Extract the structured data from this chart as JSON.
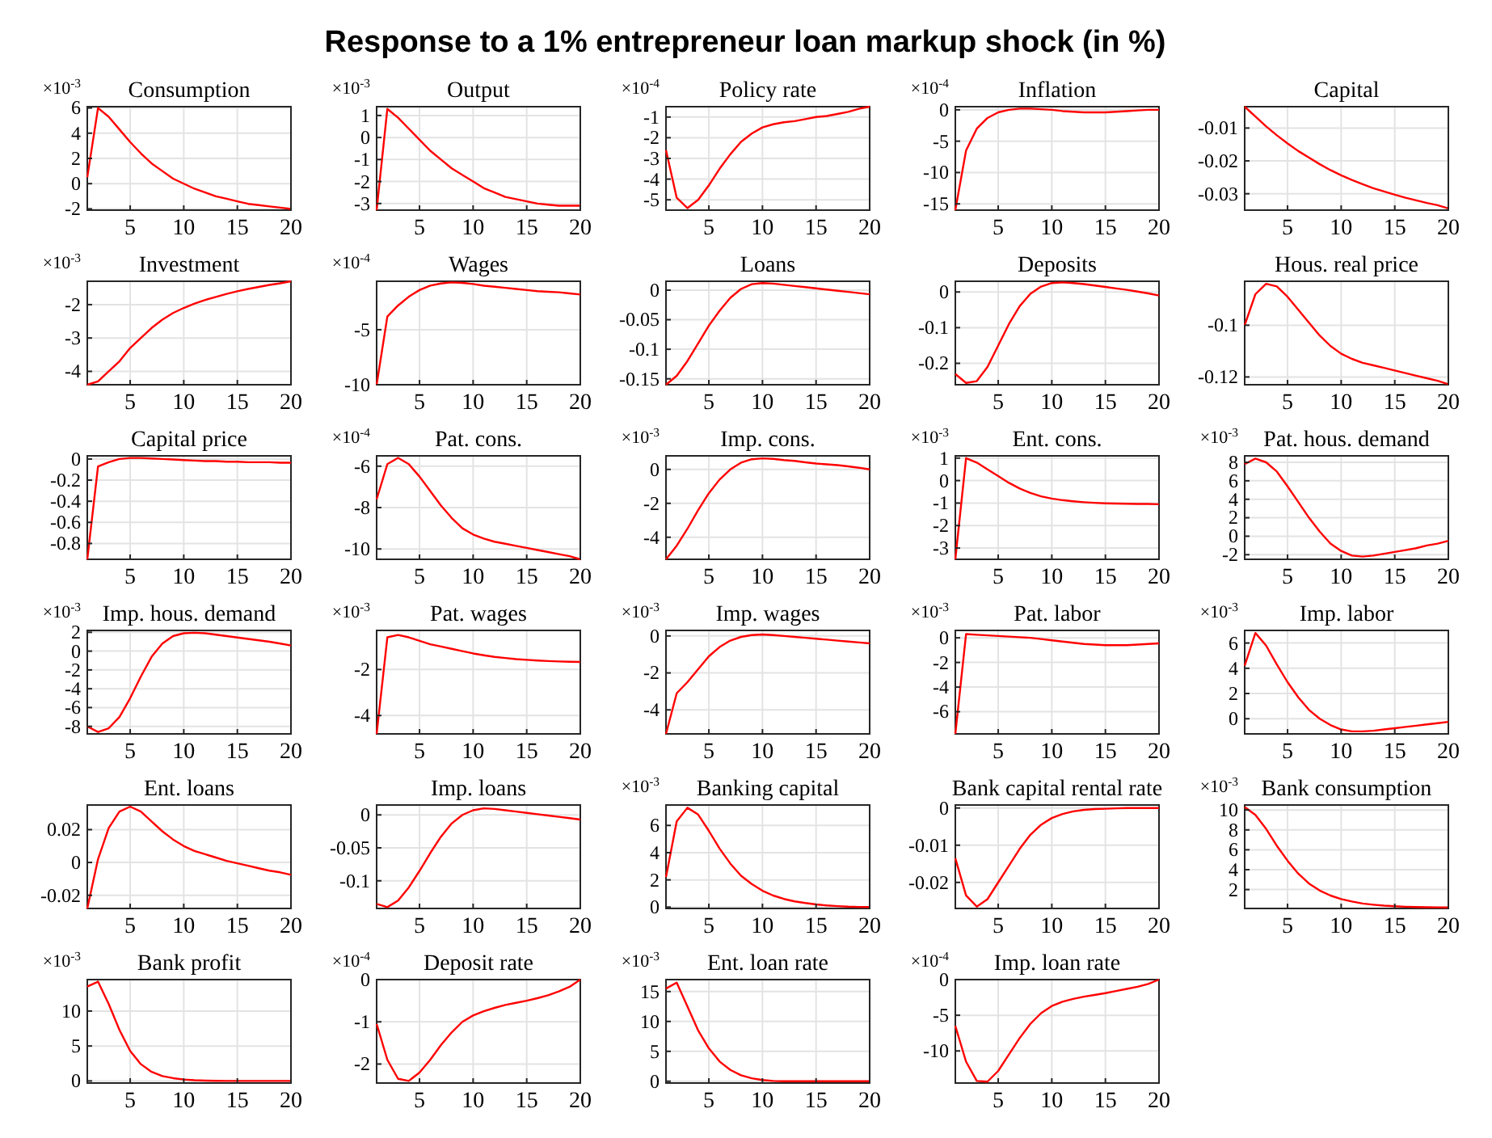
{
  "chart_data": [
    {
      "type": "line",
      "title": "Consumption",
      "annotations": [
        "Response to a 1% entrepreneur loan markup shock (in %)",
        "×10$^{-3}$"
      ],
      "x": [
        1,
        2,
        3,
        4,
        5,
        6,
        7,
        8,
        9,
        10,
        11,
        12,
        13,
        14,
        15,
        16,
        17,
        18,
        19,
        20
      ],
      "xlim": [
        1,
        20
      ],
      "xticks": [
        5,
        10,
        15,
        20
      ],
      "ylim": [
        -2.1,
        6.1
      ],
      "yticks": [
        -2,
        0,
        2,
        4,
        6
      ],
      "grid": true,
      "series": [
        {
          "color": "#ff0000",
          "values": [
            0.5,
            6,
            5.3,
            4.3,
            3.3,
            2.4,
            1.6,
            1,
            0.4,
            0,
            -0.4,
            -0.7,
            -1,
            -1.2,
            -1.4,
            -1.6,
            -1.7,
            -1.8,
            -1.9,
            -2
          ]
        }
      ]
    },
    {
      "type": "line",
      "title": "Output",
      "annotations": [
        "×10$^{-3}$"
      ],
      "x": [
        1,
        2,
        3,
        4,
        5,
        6,
        7,
        8,
        9,
        10,
        11,
        12,
        13,
        14,
        15,
        16,
        17,
        18,
        19,
        20
      ],
      "xlim": [
        1,
        20
      ],
      "xticks": [
        5,
        10,
        15,
        20
      ],
      "ylim": [
        -3.3,
        1.4
      ],
      "yticks": [
        -3,
        -2,
        -1,
        0,
        1
      ],
      "grid": true,
      "series": [
        {
          "color": "#ff0000",
          "values": [
            -3.3,
            1.3,
            0.9,
            0.4,
            -0.1,
            -0.6,
            -1,
            -1.4,
            -1.7,
            -2,
            -2.3,
            -2.5,
            -2.7,
            -2.8,
            -2.9,
            -3,
            -3.05,
            -3.1,
            -3.1,
            -3.1
          ]
        }
      ]
    },
    {
      "type": "line",
      "title": "Policy rate",
      "annotations": [
        "×10$^{-4}$"
      ],
      "x": [
        1,
        2,
        3,
        4,
        5,
        6,
        7,
        8,
        9,
        10,
        11,
        12,
        13,
        14,
        15,
        16,
        17,
        18,
        19,
        20
      ],
      "xlim": [
        1,
        20
      ],
      "xticks": [
        5,
        10,
        15,
        20
      ],
      "ylim": [
        -5.5,
        -0.5
      ],
      "yticks": [
        -5,
        -4,
        -3,
        -2,
        -1
      ],
      "grid": true,
      "series": [
        {
          "color": "#ff0000",
          "values": [
            -2.6,
            -4.9,
            -5.4,
            -5,
            -4.3,
            -3.5,
            -2.8,
            -2.2,
            -1.8,
            -1.5,
            -1.35,
            -1.25,
            -1.2,
            -1.1,
            -1,
            -0.95,
            -0.85,
            -0.75,
            -0.6,
            -0.5
          ]
        }
      ]
    },
    {
      "type": "line",
      "title": "Inflation",
      "annotations": [
        "×10$^{-4}$"
      ],
      "x": [
        1,
        2,
        3,
        4,
        5,
        6,
        7,
        8,
        9,
        10,
        11,
        12,
        13,
        14,
        15,
        16,
        17,
        18,
        19,
        20
      ],
      "xlim": [
        1,
        20
      ],
      "xticks": [
        5,
        10,
        15,
        20
      ],
      "ylim": [
        -16,
        0.5
      ],
      "yticks": [
        -15,
        -10,
        -5,
        0
      ],
      "grid": true,
      "series": [
        {
          "color": "#ff0000",
          "values": [
            -16,
            -6.5,
            -3,
            -1.3,
            -0.4,
            0,
            0.2,
            0.2,
            0.1,
            0,
            -0.2,
            -0.3,
            -0.4,
            -0.4,
            -0.4,
            -0.3,
            -0.2,
            -0.1,
            0,
            0
          ]
        }
      ]
    },
    {
      "type": "line",
      "title": "Capital",
      "x": [
        1,
        2,
        3,
        4,
        5,
        6,
        7,
        8,
        9,
        10,
        11,
        12,
        13,
        14,
        15,
        16,
        17,
        18,
        19,
        20
      ],
      "xlim": [
        1,
        20
      ],
      "xticks": [
        5,
        10,
        15,
        20
      ],
      "ylim": [
        -0.035,
        -0.0035
      ],
      "yticks": [
        -0.03,
        -0.02,
        -0.01
      ],
      "grid": true,
      "series": [
        {
          "color": "#ff0000",
          "values": [
            -0.0035,
            -0.0065,
            -0.0095,
            -0.0122,
            -0.0147,
            -0.017,
            -0.019,
            -0.021,
            -0.0228,
            -0.0244,
            -0.0258,
            -0.0271,
            -0.0283,
            -0.0293,
            -0.0303,
            -0.0312,
            -0.032,
            -0.0328,
            -0.0335,
            -0.0345
          ]
        }
      ]
    },
    {
      "type": "line",
      "title": "Investment",
      "annotations": [
        "×10$^{-3}$"
      ],
      "x": [
        1,
        2,
        3,
        4,
        5,
        6,
        7,
        8,
        9,
        10,
        11,
        12,
        13,
        14,
        15,
        16,
        17,
        18,
        19,
        20
      ],
      "xlim": [
        1,
        20
      ],
      "xticks": [
        5,
        10,
        15,
        20
      ],
      "ylim": [
        -4.4,
        -1.3
      ],
      "yticks": [
        -4,
        -3,
        -2
      ],
      "grid": true,
      "series": [
        {
          "color": "#ff0000",
          "values": [
            -4.4,
            -4.3,
            -4,
            -3.7,
            -3.3,
            -3,
            -2.7,
            -2.45,
            -2.25,
            -2.1,
            -1.97,
            -1.86,
            -1.77,
            -1.68,
            -1.6,
            -1.53,
            -1.47,
            -1.41,
            -1.36,
            -1.3
          ]
        }
      ]
    },
    {
      "type": "line",
      "title": "Wages",
      "annotations": [
        "×10$^{-4}$"
      ],
      "x": [
        1,
        2,
        3,
        4,
        5,
        6,
        7,
        8,
        9,
        10,
        11,
        12,
        13,
        14,
        15,
        16,
        17,
        18,
        19,
        20
      ],
      "xlim": [
        1,
        20
      ],
      "xticks": [
        5,
        10,
        15,
        20
      ],
      "ylim": [
        -10,
        -0.6
      ],
      "yticks": [
        -10,
        -5
      ],
      "grid": true,
      "series": [
        {
          "color": "#ff0000",
          "values": [
            -10,
            -3.8,
            -2.8,
            -2,
            -1.4,
            -1,
            -0.8,
            -0.7,
            -0.75,
            -0.85,
            -1,
            -1.1,
            -1.2,
            -1.3,
            -1.4,
            -1.5,
            -1.55,
            -1.6,
            -1.7,
            -1.8
          ]
        }
      ]
    },
    {
      "type": "line",
      "title": "Loans",
      "x": [
        1,
        2,
        3,
        4,
        5,
        6,
        7,
        8,
        9,
        10,
        11,
        12,
        13,
        14,
        15,
        16,
        17,
        18,
        19,
        20
      ],
      "xlim": [
        1,
        20
      ],
      "xticks": [
        5,
        10,
        15,
        20
      ],
      "ylim": [
        -0.16,
        0.015
      ],
      "yticks": [
        -0.15,
        -0.1,
        -0.05,
        0
      ],
      "grid": true,
      "series": [
        {
          "color": "#ff0000",
          "values": [
            -0.16,
            -0.145,
            -0.12,
            -0.09,
            -0.06,
            -0.035,
            -0.013,
            0.002,
            0.01,
            0.012,
            0.011,
            0.009,
            0.007,
            0.005,
            0.003,
            0.001,
            -0.001,
            -0.003,
            -0.005,
            -0.007
          ]
        }
      ]
    },
    {
      "type": "line",
      "title": "Deposits",
      "x": [
        1,
        2,
        3,
        4,
        5,
        6,
        7,
        8,
        9,
        10,
        11,
        12,
        13,
        14,
        15,
        16,
        17,
        18,
        19,
        20
      ],
      "xlim": [
        1,
        20
      ],
      "xticks": [
        5,
        10,
        15,
        20
      ],
      "ylim": [
        -0.26,
        0.03
      ],
      "yticks": [
        -0.2,
        -0.1,
        0
      ],
      "grid": true,
      "series": [
        {
          "color": "#ff0000",
          "values": [
            -0.23,
            -0.255,
            -0.25,
            -0.21,
            -0.15,
            -0.09,
            -0.04,
            -0.005,
            0.015,
            0.025,
            0.027,
            0.025,
            0.022,
            0.018,
            0.014,
            0.01,
            0.006,
            0.001,
            -0.004,
            -0.01
          ]
        }
      ]
    },
    {
      "type": "line",
      "title": "Hous. real price",
      "x": [
        1,
        2,
        3,
        4,
        5,
        6,
        7,
        8,
        9,
        10,
        11,
        12,
        13,
        14,
        15,
        16,
        17,
        18,
        19,
        20
      ],
      "xlim": [
        1,
        20
      ],
      "xticks": [
        5,
        10,
        15,
        20
      ],
      "ylim": [
        -0.123,
        -0.083
      ],
      "yticks": [
        -0.12,
        -0.1
      ],
      "grid": true,
      "series": [
        {
          "color": "#ff0000",
          "values": [
            -0.1,
            -0.088,
            -0.084,
            -0.085,
            -0.089,
            -0.094,
            -0.099,
            -0.104,
            -0.108,
            -0.111,
            -0.113,
            -0.1145,
            -0.1155,
            -0.1165,
            -0.1175,
            -0.1185,
            -0.1195,
            -0.1205,
            -0.1215,
            -0.1228
          ]
        }
      ]
    },
    {
      "type": "line",
      "title": "Capital price",
      "x": [
        1,
        2,
        3,
        4,
        5,
        6,
        7,
        8,
        9,
        10,
        11,
        12,
        13,
        14,
        15,
        16,
        17,
        18,
        19,
        20
      ],
      "xlim": [
        1,
        20
      ],
      "xticks": [
        5,
        10,
        15,
        20
      ],
      "ylim": [
        -0.95,
        0.03
      ],
      "yticks": [
        -0.8,
        -0.6,
        -0.4,
        -0.2,
        0
      ],
      "grid": true,
      "series": [
        {
          "color": "#ff0000",
          "values": [
            -0.95,
            -0.07,
            -0.03,
            0,
            0.01,
            0.01,
            0.005,
            0,
            -0.005,
            -0.01,
            -0.015,
            -0.02,
            -0.02,
            -0.025,
            -0.025,
            -0.03,
            -0.03,
            -0.03,
            -0.035,
            -0.035
          ]
        }
      ]
    },
    {
      "type": "line",
      "title": "Pat. cons.",
      "annotations": [
        "×10$^{-4}$"
      ],
      "x": [
        1,
        2,
        3,
        4,
        5,
        6,
        7,
        8,
        9,
        10,
        11,
        12,
        13,
        14,
        15,
        16,
        17,
        18,
        19,
        20
      ],
      "xlim": [
        1,
        20
      ],
      "xticks": [
        5,
        10,
        15,
        20
      ],
      "ylim": [
        -10.5,
        -5.5
      ],
      "yticks": [
        -10,
        -8,
        -6
      ],
      "grid": true,
      "series": [
        {
          "color": "#ff0000",
          "values": [
            -7.6,
            -5.9,
            -5.6,
            -5.9,
            -6.5,
            -7.2,
            -7.9,
            -8.5,
            -9,
            -9.3,
            -9.5,
            -9.65,
            -9.75,
            -9.85,
            -9.95,
            -10.05,
            -10.15,
            -10.25,
            -10.35,
            -10.5
          ]
        }
      ]
    },
    {
      "type": "line",
      "title": "Imp. cons.",
      "annotations": [
        "×10$^{-3}$"
      ],
      "x": [
        1,
        2,
        3,
        4,
        5,
        6,
        7,
        8,
        9,
        10,
        11,
        12,
        13,
        14,
        15,
        16,
        17,
        18,
        19,
        20
      ],
      "xlim": [
        1,
        20
      ],
      "xticks": [
        5,
        10,
        15,
        20
      ],
      "ylim": [
        -5.3,
        0.8
      ],
      "yticks": [
        -4,
        -2,
        0
      ],
      "grid": true,
      "series": [
        {
          "color": "#ff0000",
          "values": [
            -5.3,
            -4.5,
            -3.5,
            -2.4,
            -1.4,
            -0.6,
            0,
            0.4,
            0.6,
            0.65,
            0.62,
            0.55,
            0.5,
            0.42,
            0.35,
            0.3,
            0.25,
            0.18,
            0.1,
            0
          ]
        }
      ]
    },
    {
      "type": "line",
      "title": "Ent. cons.",
      "annotations": [
        "×10$^{-3}$"
      ],
      "x": [
        1,
        2,
        3,
        4,
        5,
        6,
        7,
        8,
        9,
        10,
        11,
        12,
        13,
        14,
        15,
        16,
        17,
        18,
        19,
        20
      ],
      "xlim": [
        1,
        20
      ],
      "xticks": [
        5,
        10,
        15,
        20
      ],
      "ylim": [
        -3.5,
        1.1
      ],
      "yticks": [
        -3,
        -2,
        -1,
        0,
        1
      ],
      "grid": true,
      "series": [
        {
          "color": "#ff0000",
          "values": [
            -3.5,
            1,
            0.8,
            0.5,
            0.2,
            -0.1,
            -0.35,
            -0.55,
            -0.7,
            -0.8,
            -0.87,
            -0.92,
            -0.96,
            -0.99,
            -1.01,
            -1.02,
            -1.03,
            -1.04,
            -1.04,
            -1.05
          ]
        }
      ]
    },
    {
      "type": "line",
      "title": "Pat. hous. demand",
      "annotations": [
        "×10$^{-3}$"
      ],
      "x": [
        1,
        2,
        3,
        4,
        5,
        6,
        7,
        8,
        9,
        10,
        11,
        12,
        13,
        14,
        15,
        16,
        17,
        18,
        19,
        20
      ],
      "xlim": [
        1,
        20
      ],
      "xticks": [
        5,
        10,
        15,
        20
      ],
      "ylim": [
        -2.5,
        8.7
      ],
      "yticks": [
        -2,
        0,
        2,
        4,
        6,
        8
      ],
      "grid": true,
      "series": [
        {
          "color": "#ff0000",
          "values": [
            7.8,
            8.4,
            8,
            7,
            5.4,
            3.7,
            2,
            0.5,
            -0.8,
            -1.6,
            -2.1,
            -2.2,
            -2.1,
            -1.9,
            -1.7,
            -1.5,
            -1.3,
            -1,
            -0.8,
            -0.5
          ]
        }
      ]
    },
    {
      "type": "line",
      "title": "Imp. hous. demand",
      "annotations": [
        "×10$^{-3}$"
      ],
      "x": [
        1,
        2,
        3,
        4,
        5,
        6,
        7,
        8,
        9,
        10,
        11,
        12,
        13,
        14,
        15,
        16,
        17,
        18,
        19,
        20
      ],
      "xlim": [
        1,
        20
      ],
      "xticks": [
        5,
        10,
        15,
        20
      ],
      "ylim": [
        -8.8,
        2.2
      ],
      "yticks": [
        -8,
        -6,
        -4,
        -2,
        0,
        2
      ],
      "grid": true,
      "series": [
        {
          "color": "#ff0000",
          "values": [
            -8,
            -8.6,
            -8.2,
            -7,
            -5,
            -2.7,
            -0.6,
            0.8,
            1.6,
            1.9,
            1.95,
            1.9,
            1.75,
            1.6,
            1.45,
            1.3,
            1.15,
            1,
            0.8,
            0.6
          ]
        }
      ]
    },
    {
      "type": "line",
      "title": "Pat. wages",
      "annotations": [
        "×10$^{-3}$"
      ],
      "x": [
        1,
        2,
        3,
        4,
        5,
        6,
        7,
        8,
        9,
        10,
        11,
        12,
        13,
        14,
        15,
        16,
        17,
        18,
        19,
        20
      ],
      "xlim": [
        1,
        20
      ],
      "xticks": [
        5,
        10,
        15,
        20
      ],
      "ylim": [
        -4.8,
        -0.3
      ],
      "yticks": [
        -4,
        -2
      ],
      "grid": true,
      "series": [
        {
          "color": "#ff0000",
          "values": [
            -4.8,
            -0.6,
            -0.5,
            -0.6,
            -0.75,
            -0.9,
            -1,
            -1.1,
            -1.2,
            -1.3,
            -1.38,
            -1.45,
            -1.5,
            -1.55,
            -1.58,
            -1.61,
            -1.63,
            -1.65,
            -1.66,
            -1.67
          ]
        }
      ]
    },
    {
      "type": "line",
      "title": "Imp. wages",
      "annotations": [
        "×10$^{-3}$"
      ],
      "x": [
        1,
        2,
        3,
        4,
        5,
        6,
        7,
        8,
        9,
        10,
        11,
        12,
        13,
        14,
        15,
        16,
        17,
        18,
        19,
        20
      ],
      "xlim": [
        1,
        20
      ],
      "xticks": [
        5,
        10,
        15,
        20
      ],
      "ylim": [
        -5.3,
        0.3
      ],
      "yticks": [
        -4,
        -2,
        0
      ],
      "grid": true,
      "series": [
        {
          "color": "#ff0000",
          "values": [
            -5.3,
            -3.1,
            -2.5,
            -1.8,
            -1.1,
            -0.6,
            -0.25,
            -0.05,
            0.05,
            0.08,
            0.05,
            0,
            -0.05,
            -0.1,
            -0.15,
            -0.2,
            -0.25,
            -0.3,
            -0.35,
            -0.4
          ]
        }
      ]
    },
    {
      "type": "line",
      "title": "Pat. labor",
      "annotations": [
        "×10$^{-3}$"
      ],
      "x": [
        1,
        2,
        3,
        4,
        5,
        6,
        7,
        8,
        9,
        10,
        11,
        12,
        13,
        14,
        15,
        16,
        17,
        18,
        19,
        20
      ],
      "xlim": [
        1,
        20
      ],
      "xticks": [
        5,
        10,
        15,
        20
      ],
      "ylim": [
        -7.8,
        0.6
      ],
      "yticks": [
        -6,
        -4,
        -2,
        0
      ],
      "grid": true,
      "series": [
        {
          "color": "#ff0000",
          "values": [
            -7.8,
            0.3,
            0.25,
            0.2,
            0.15,
            0.1,
            0.05,
            0,
            -0.1,
            -0.2,
            -0.3,
            -0.4,
            -0.5,
            -0.55,
            -0.6,
            -0.6,
            -0.6,
            -0.55,
            -0.5,
            -0.45
          ]
        }
      ]
    },
    {
      "type": "line",
      "title": "Imp. labor",
      "annotations": [
        "×10$^{-3}$"
      ],
      "x": [
        1,
        2,
        3,
        4,
        5,
        6,
        7,
        8,
        9,
        10,
        11,
        12,
        13,
        14,
        15,
        16,
        17,
        18,
        19,
        20
      ],
      "xlim": [
        1,
        20
      ],
      "xticks": [
        5,
        10,
        15,
        20
      ],
      "ylim": [
        -1.2,
        7
      ],
      "yticks": [
        0,
        2,
        4,
        6
      ],
      "grid": true,
      "series": [
        {
          "color": "#ff0000",
          "values": [
            4.2,
            6.8,
            5.8,
            4.3,
            2.9,
            1.7,
            0.7,
            0,
            -0.5,
            -0.85,
            -1,
            -1,
            -0.95,
            -0.85,
            -0.75,
            -0.65,
            -0.55,
            -0.45,
            -0.35,
            -0.25
          ]
        }
      ]
    },
    {
      "type": "line",
      "title": "Ent. loans",
      "x": [
        1,
        2,
        3,
        4,
        5,
        6,
        7,
        8,
        9,
        10,
        11,
        12,
        13,
        14,
        15,
        16,
        17,
        18,
        19,
        20
      ],
      "xlim": [
        1,
        20
      ],
      "xticks": [
        5,
        10,
        15,
        20
      ],
      "ylim": [
        -0.028,
        0.035
      ],
      "yticks": [
        -0.02,
        0,
        0.02
      ],
      "grid": true,
      "series": [
        {
          "color": "#ff0000",
          "values": [
            -0.028,
            0.002,
            0.021,
            0.031,
            0.034,
            0.031,
            0.025,
            0.019,
            0.014,
            0.01,
            0.007,
            0.005,
            0.003,
            0.001,
            -0.0005,
            -0.002,
            -0.0035,
            -0.005,
            -0.006,
            -0.0075
          ]
        }
      ]
    },
    {
      "type": "line",
      "title": "Imp. loans",
      "x": [
        1,
        2,
        3,
        4,
        5,
        6,
        7,
        8,
        9,
        10,
        11,
        12,
        13,
        14,
        15,
        16,
        17,
        18,
        19,
        20
      ],
      "xlim": [
        1,
        20
      ],
      "xticks": [
        5,
        10,
        15,
        20
      ],
      "ylim": [
        -0.142,
        0.015
      ],
      "yticks": [
        -0.1,
        -0.05,
        0
      ],
      "grid": true,
      "series": [
        {
          "color": "#ff0000",
          "values": [
            -0.135,
            -0.14,
            -0.13,
            -0.11,
            -0.085,
            -0.058,
            -0.033,
            -0.013,
            0,
            0.007,
            0.01,
            0.009,
            0.007,
            0.005,
            0.003,
            0.001,
            -0.001,
            -0.003,
            -0.005,
            -0.007
          ]
        }
      ]
    },
    {
      "type": "line",
      "title": "Banking capital",
      "annotations": [
        "×10$^{-3}$"
      ],
      "x": [
        1,
        2,
        3,
        4,
        5,
        6,
        7,
        8,
        9,
        10,
        11,
        12,
        13,
        14,
        15,
        16,
        17,
        18,
        19,
        20
      ],
      "xlim": [
        1,
        20
      ],
      "xticks": [
        5,
        10,
        15,
        20
      ],
      "ylim": [
        -0.1,
        7.5
      ],
      "yticks": [
        0,
        2,
        4,
        6
      ],
      "grid": true,
      "series": [
        {
          "color": "#ff0000",
          "values": [
            2.2,
            6.3,
            7.3,
            6.8,
            5.6,
            4.3,
            3.2,
            2.3,
            1.7,
            1.2,
            0.85,
            0.6,
            0.42,
            0.3,
            0.2,
            0.12,
            0.07,
            0.03,
            0.01,
            0
          ]
        }
      ]
    },
    {
      "type": "line",
      "title": "Bank capital rental rate",
      "x": [
        1,
        2,
        3,
        4,
        5,
        6,
        7,
        8,
        9,
        10,
        11,
        12,
        13,
        14,
        15,
        16,
        17,
        18,
        19,
        20
      ],
      "xlim": [
        1,
        20
      ],
      "xticks": [
        5,
        10,
        15,
        20
      ],
      "ylim": [
        -0.027,
        0.0008
      ],
      "yticks": [
        -0.02,
        -0.01,
        0
      ],
      "grid": true,
      "series": [
        {
          "color": "#ff0000",
          "values": [
            -0.0135,
            -0.0235,
            -0.0265,
            -0.0245,
            -0.02,
            -0.0155,
            -0.011,
            -0.0072,
            -0.0045,
            -0.0027,
            -0.0016,
            -0.0009,
            -0.0005,
            -0.0003,
            -0.0002,
            -0.0001,
            0,
            0,
            0,
            0
          ]
        }
      ]
    },
    {
      "type": "line",
      "title": "Bank consumption",
      "annotations": [
        "×10$^{-3}$"
      ],
      "x": [
        1,
        2,
        3,
        4,
        5,
        6,
        7,
        8,
        9,
        10,
        11,
        12,
        13,
        14,
        15,
        16,
        17,
        18,
        19,
        20
      ],
      "xlim": [
        1,
        20
      ],
      "xticks": [
        5,
        10,
        15,
        20
      ],
      "ylim": [
        0.1,
        10.5
      ],
      "yticks": [
        2,
        4,
        6,
        8,
        10
      ],
      "grid": true,
      "series": [
        {
          "color": "#ff0000",
          "values": [
            10.3,
            9.5,
            8.1,
            6.4,
            4.9,
            3.6,
            2.6,
            1.9,
            1.4,
            1.05,
            0.8,
            0.6,
            0.48,
            0.38,
            0.32,
            0.27,
            0.24,
            0.22,
            0.21,
            0.2
          ]
        }
      ]
    },
    {
      "type": "line",
      "title": "Bank profit",
      "annotations": [
        "×10$^{-3}$"
      ],
      "x": [
        1,
        2,
        3,
        4,
        5,
        6,
        7,
        8,
        9,
        10,
        11,
        12,
        13,
        14,
        15,
        16,
        17,
        18,
        19,
        20
      ],
      "xlim": [
        1,
        20
      ],
      "xticks": [
        5,
        10,
        15,
        20
      ],
      "ylim": [
        -0.3,
        14.5
      ],
      "yticks": [
        0,
        5,
        10
      ],
      "grid": true,
      "series": [
        {
          "color": "#ff0000",
          "values": [
            13.5,
            14.2,
            11,
            7.3,
            4.3,
            2.4,
            1.3,
            0.7,
            0.4,
            0.2,
            0.1,
            0.05,
            0.02,
            0,
            0,
            0,
            0,
            0,
            0,
            0
          ]
        }
      ]
    },
    {
      "type": "line",
      "title": "Deposit rate",
      "annotations": [
        "×10$^{-4}$"
      ],
      "x": [
        1,
        2,
        3,
        4,
        5,
        6,
        7,
        8,
        9,
        10,
        11,
        12,
        13,
        14,
        15,
        16,
        17,
        18,
        19,
        20
      ],
      "xlim": [
        1,
        20
      ],
      "xticks": [
        5,
        10,
        15,
        20
      ],
      "ylim": [
        -2.45,
        0
      ],
      "yticks": [
        -2,
        -1,
        0
      ],
      "grid": true,
      "series": [
        {
          "color": "#ff0000",
          "values": [
            -1.05,
            -1.9,
            -2.35,
            -2.4,
            -2.2,
            -1.9,
            -1.55,
            -1.25,
            -1,
            -0.85,
            -0.75,
            -0.67,
            -0.6,
            -0.55,
            -0.5,
            -0.44,
            -0.37,
            -0.28,
            -0.17,
            0
          ]
        }
      ]
    },
    {
      "type": "line",
      "title": "Ent. loan rate",
      "annotations": [
        "×10$^{-3}$"
      ],
      "x": [
        1,
        2,
        3,
        4,
        5,
        6,
        7,
        8,
        9,
        10,
        11,
        12,
        13,
        14,
        15,
        16,
        17,
        18,
        19,
        20
      ],
      "xlim": [
        1,
        20
      ],
      "xticks": [
        5,
        10,
        15,
        20
      ],
      "ylim": [
        -0.3,
        17
      ],
      "yticks": [
        0,
        5,
        10,
        15
      ],
      "grid": true,
      "series": [
        {
          "color": "#ff0000",
          "values": [
            15.5,
            16.5,
            12.5,
            8.5,
            5.5,
            3.3,
            1.9,
            1,
            0.5,
            0.2,
            0.05,
            0,
            0,
            0,
            0,
            0,
            0,
            0,
            0,
            0
          ]
        }
      ]
    },
    {
      "type": "line",
      "title": "Imp. loan rate",
      "annotations": [
        "×10$^{-4}$"
      ],
      "x": [
        1,
        2,
        3,
        4,
        5,
        6,
        7,
        8,
        9,
        10,
        11,
        12,
        13,
        14,
        15,
        16,
        17,
        18,
        19,
        20
      ],
      "xlim": [
        1,
        20
      ],
      "xticks": [
        5,
        10,
        15,
        20
      ],
      "ylim": [
        -14.5,
        0
      ],
      "yticks": [
        -10,
        -5,
        0
      ],
      "grid": true,
      "series": [
        {
          "color": "#ff0000",
          "values": [
            -6.5,
            -11.5,
            -14.2,
            -14.3,
            -12.8,
            -10.5,
            -8.2,
            -6.2,
            -4.7,
            -3.7,
            -3.1,
            -2.7,
            -2.4,
            -2.15,
            -1.9,
            -1.6,
            -1.3,
            -1,
            -0.6,
            0
          ]
        }
      ]
    }
  ]
}
